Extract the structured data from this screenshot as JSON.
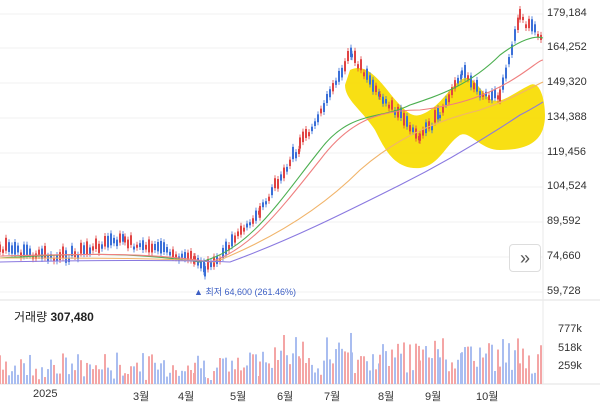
{
  "price_axis": [
    "179,184",
    "164,252",
    "149,320",
    "134,388",
    "119,456",
    "104,524",
    "89,592",
    "74,660",
    "59,728"
  ],
  "low_annotation": {
    "marker": "▲",
    "text": "최저 64,600 (261.46%)"
  },
  "volume": {
    "label": "거래량",
    "value": "307,480"
  },
  "volume_axis": [
    "777k",
    "518k",
    "259k"
  ],
  "x_axis": [
    "2025",
    "3월",
    "4월",
    "5월",
    "6월",
    "7월",
    "8월",
    "9월",
    "10월"
  ],
  "expand_button": {
    "label": "»"
  },
  "colors": {
    "up": "#e04343",
    "down": "#3a6fd8",
    "ma5": "#4caf50",
    "ma20": "#ef7f7f",
    "ma60": "#f1b46a",
    "ma120": "#8a79e0",
    "highlight": "#f7dc00"
  }
}
